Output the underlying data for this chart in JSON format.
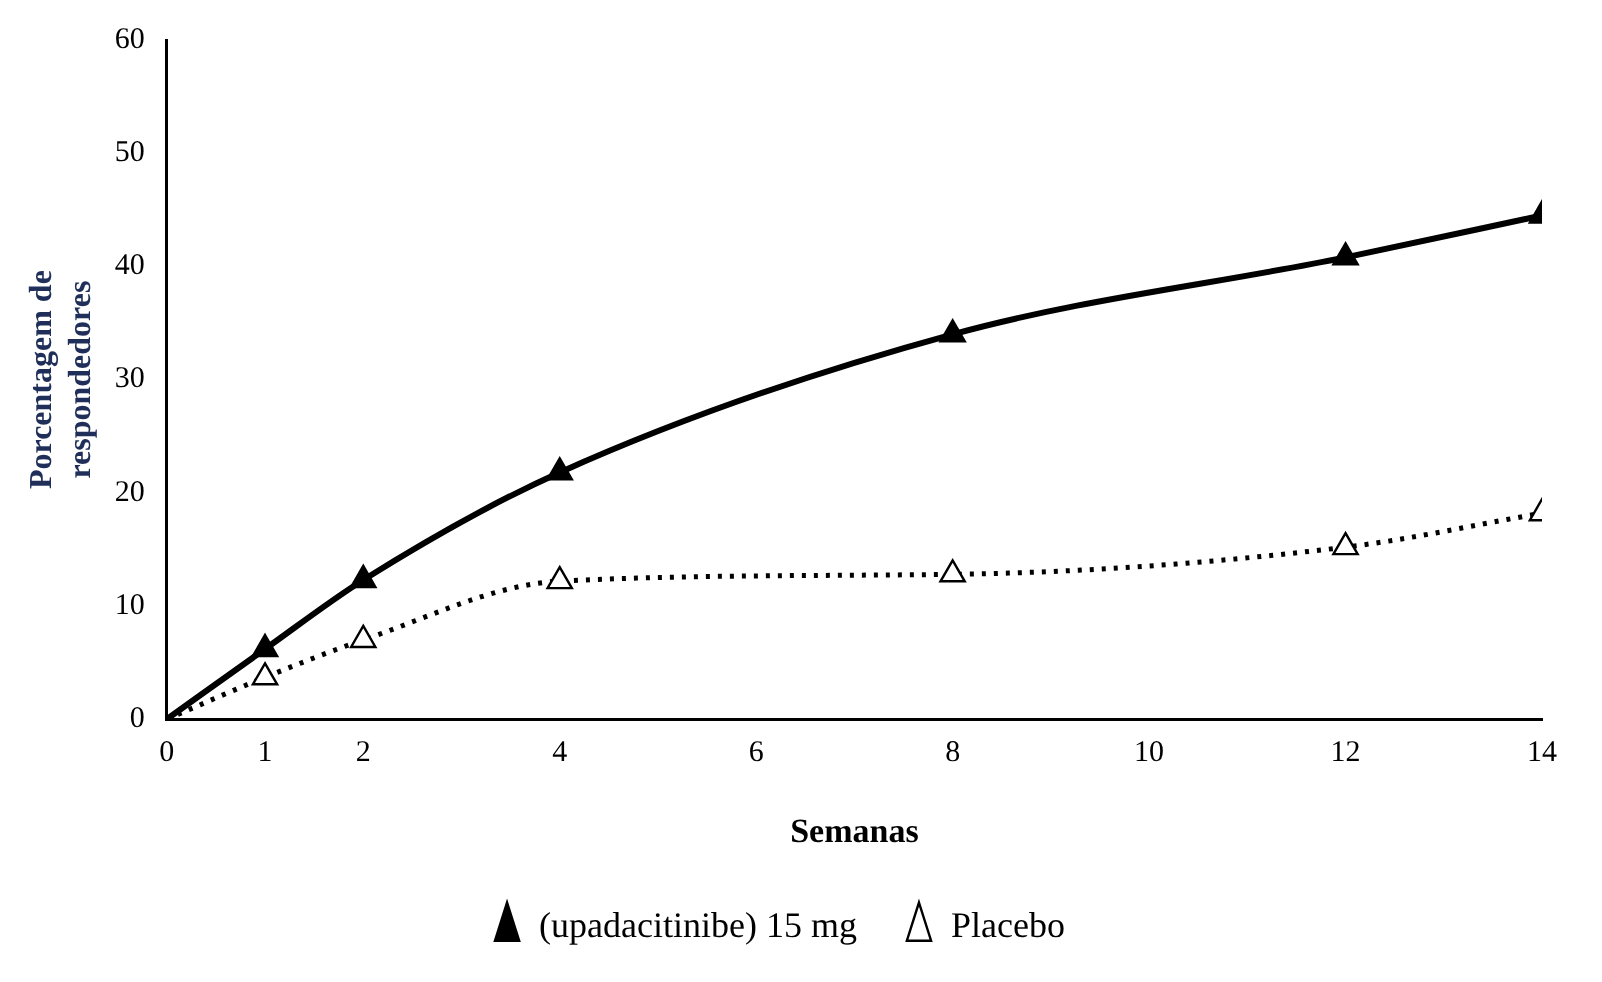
{
  "chart_data": {
    "type": "line",
    "xlabel": "Semanas",
    "ylabel": "Porcentagem de respondedores",
    "x": [
      0,
      1,
      2,
      4,
      8,
      12,
      14
    ],
    "series": [
      {
        "name": "(upadacitinibe) 15 mg",
        "color": "#000000",
        "values": [
          0,
          6.2,
          12.3,
          21.8,
          34,
          40.8,
          44.5
        ],
        "marker": "triangle",
        "line_style": "solid"
      },
      {
        "name": "Placebo",
        "color": "#000000",
        "values": [
          0,
          3.7,
          7,
          12.2,
          12.8,
          15.2,
          18.2
        ],
        "marker": "triangle",
        "line_style": "dotted"
      }
    ],
    "xlim": [
      0,
      14
    ],
    "xticks": [
      0,
      1,
      2,
      4,
      6,
      8,
      10,
      12,
      14
    ],
    "ylim": [
      0,
      60
    ],
    "yticks": [
      0,
      10,
      20,
      30,
      40,
      50,
      60
    ],
    "grid": false,
    "legend": "bottom"
  }
}
